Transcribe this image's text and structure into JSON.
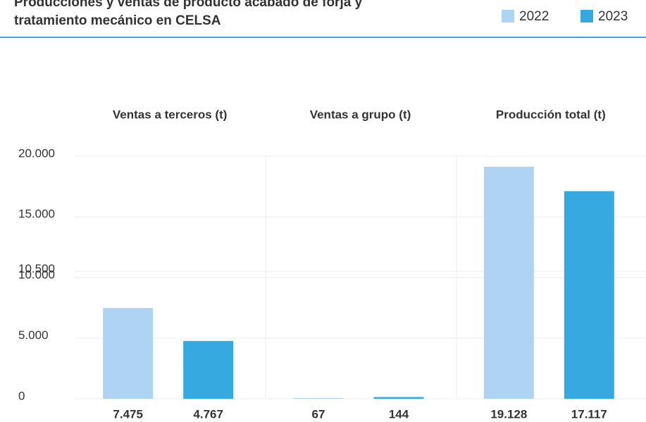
{
  "chart_data": {
    "type": "bar",
    "title": "Producciones y ventas de producto acabado de forja y tratamiento mecánico en CELSA",
    "categories": [
      "Ventas a terceros (t)",
      "Ventas a grupo (t)",
      "Producción total (t)"
    ],
    "series": [
      {
        "name": "2022",
        "color": "#afd3f2",
        "values": [
          7475,
          67,
          19128
        ],
        "value_labels": [
          "7.475",
          "67",
          "19.128"
        ]
      },
      {
        "name": "2023",
        "color": "#36a9e1",
        "values": [
          4767,
          144,
          17117
        ],
        "value_labels": [
          "4.767",
          "144",
          "17.117"
        ]
      }
    ],
    "ylim": [
      0,
      20000
    ],
    "yticks": [
      0,
      {
        "value": 5000,
        "label": "5.000"
      },
      {
        "value": 10000,
        "label": "10.000"
      },
      {
        "value": 10500,
        "label": "10.500"
      },
      {
        "value": 15000,
        "label": "15.000"
      },
      {
        "value": 20000,
        "label": "20.000"
      }
    ],
    "grid": true,
    "legend": "top-right"
  }
}
